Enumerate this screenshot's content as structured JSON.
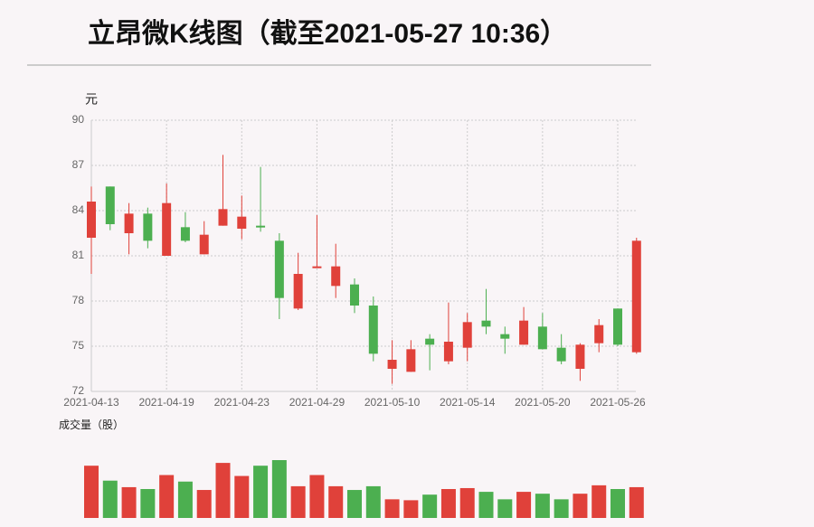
{
  "chart_data": {
    "type": "candlestick",
    "title": "立昂微K线图（截至2021-05-27 10:36）",
    "y_label": "元",
    "categories": [
      "2021-04-13",
      null,
      null,
      null,
      "2021-04-19",
      null,
      null,
      null,
      "2021-04-23",
      null,
      null,
      null,
      "2021-04-29",
      null,
      null,
      null,
      "2021-05-10",
      null,
      null,
      null,
      "2021-05-14",
      null,
      null,
      null,
      "2021-05-20",
      null,
      null,
      null,
      "2021-05-26",
      null
    ],
    "open": [
      82.2,
      85.6,
      82.5,
      83.8,
      81.0,
      82.9,
      81.1,
      83.0,
      82.8,
      83.0,
      82.0,
      77.5,
      80.2,
      79.0,
      79.1,
      77.7,
      73.5,
      73.3,
      75.5,
      74.0,
      74.9,
      76.7,
      75.8,
      75.1,
      76.3,
      74.9,
      73.5,
      75.2,
      77.5,
      74.6
    ],
    "close": [
      84.6,
      83.1,
      83.8,
      82.0,
      84.5,
      82.0,
      82.4,
      84.1,
      83.6,
      82.9,
      78.2,
      79.8,
      80.3,
      80.3,
      77.7,
      74.5,
      74.1,
      74.8,
      75.1,
      75.3,
      76.6,
      76.3,
      75.5,
      76.7,
      74.8,
      74.0,
      75.1,
      76.4,
      75.1,
      82.0
    ],
    "high": [
      85.6,
      85.6,
      84.5,
      84.2,
      85.8,
      83.9,
      83.3,
      87.7,
      85.0,
      86.9,
      82.5,
      81.2,
      83.7,
      81.8,
      79.5,
      78.3,
      75.4,
      75.4,
      75.8,
      77.9,
      77.2,
      78.8,
      76.3,
      77.6,
      77.2,
      75.8,
      75.2,
      76.8,
      77.5,
      82.2
    ],
    "low": [
      79.8,
      82.7,
      81.1,
      81.5,
      81.0,
      81.9,
      81.1,
      83.0,
      82.1,
      82.6,
      76.8,
      77.4,
      80.2,
      78.2,
      77.2,
      74.0,
      72.5,
      73.3,
      73.4,
      73.8,
      74.0,
      75.8,
      74.5,
      75.1,
      74.8,
      73.8,
      72.7,
      74.6,
      75.0,
      74.5
    ],
    "up_color": "#e0413a",
    "down_color": "#4caf50",
    "ylim": [
      72,
      90
    ],
    "yticks": [
      72,
      75,
      78,
      81,
      84,
      87,
      90
    ],
    "grid": true,
    "volume": {
      "label": "成交量（股）",
      "values": [
        56,
        40,
        33,
        31,
        46,
        39,
        30,
        59,
        45,
        56,
        62,
        34,
        46,
        34,
        30,
        34,
        20,
        19,
        25,
        31,
        32,
        28,
        20,
        28,
        26,
        20,
        26,
        35,
        31,
        33
      ]
    }
  }
}
